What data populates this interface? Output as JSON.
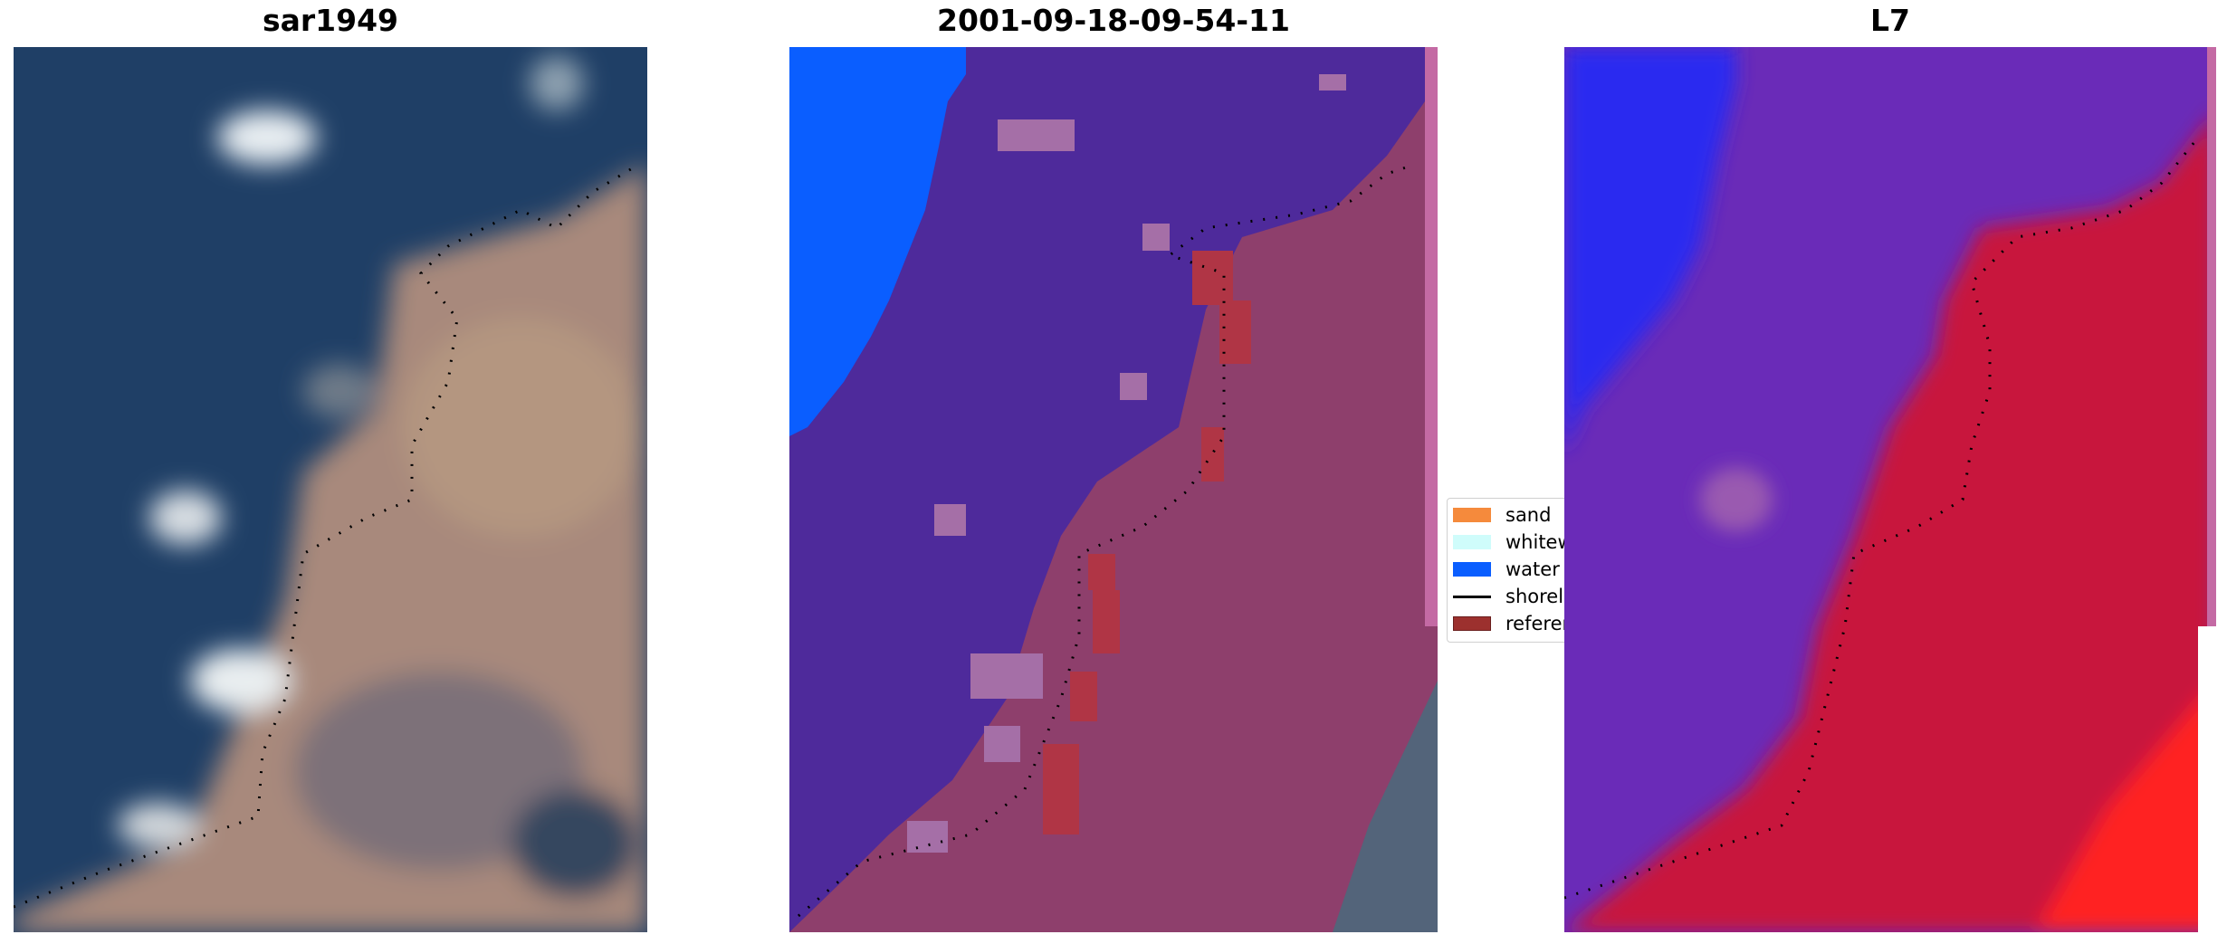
{
  "panels": [
    {
      "title": "sar1949"
    },
    {
      "title": "2001-09-18-09-54-11"
    },
    {
      "title": "L7"
    }
  ],
  "legend": {
    "items": [
      {
        "label": "sand",
        "color": "#f58a3c",
        "kind": "patch"
      },
      {
        "label": "whitew",
        "color": "#cffcfb",
        "kind": "patch"
      },
      {
        "label": "water",
        "color": "#0a5eff",
        "kind": "patch"
      },
      {
        "label": "shorel",
        "color": "#000000",
        "kind": "line"
      },
      {
        "label": "referen",
        "color": "#9c302e",
        "kind": "patch"
      }
    ]
  },
  "colors": {
    "sea": "#1f3f66",
    "land": "#a8897c",
    "classified_water": "#4e2a9b",
    "classified_land": "#8e3f6c",
    "sand_class": "#a62f48",
    "l7_water": "#6a2bb8",
    "l7_land": "#c8123e",
    "l7_blue": "#2c2cf0"
  }
}
